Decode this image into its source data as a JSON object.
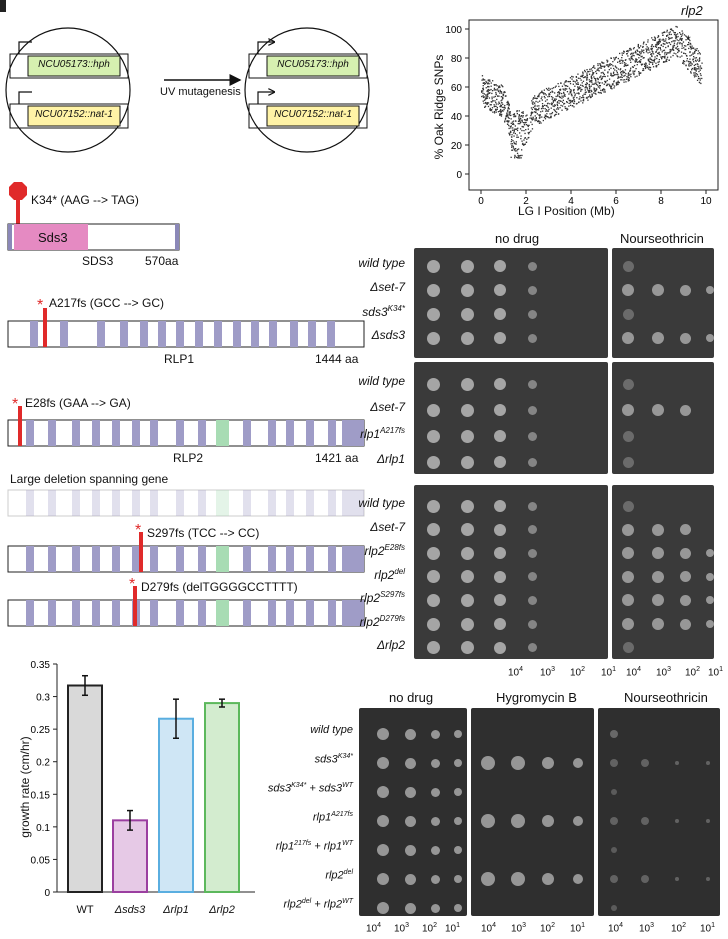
{
  "panelA": {
    "gene1": "NCU05173::hph",
    "gene2": "NCU07152::nat-1",
    "arrow_label": "UV mutagenesis"
  },
  "panelB": {
    "title": "rlp2",
    "ylabel": "% Oak Ridge SNPs",
    "xlabel": "LG I Position (Mb)",
    "y_ticks": [
      "0",
      "20",
      "40",
      "60",
      "80",
      "100"
    ],
    "x_ticks": [
      "0",
      "2",
      "4",
      "6",
      "8",
      "10"
    ],
    "marker": "*"
  },
  "panelC": {
    "sds3_mut": "K34* (AAG --> TAG)",
    "sds3_domain": "Sds3",
    "sds3_name": "SDS3",
    "sds3_len": "570aa",
    "rlp1_mut": "A217fs (GCC --> GC)",
    "rlp1_name": "RLP1",
    "rlp1_len": "1444 aa",
    "rlp2_mut": "E28fs (GAA --> GA)",
    "rlp2_name": "RLP2",
    "rlp2_len": "1421 aa",
    "deletion_label": "Large deletion spanning gene",
    "s297": "S297fs (TCC --> CC)",
    "d279": "D279fs (delTGGGGCCTTTT)",
    "star": "*"
  },
  "spots": {
    "header1": "no drug",
    "header2": "Nourseothricin",
    "group1": [
      {
        "name": "wild type",
        "sup": ""
      },
      {
        "name": "Δset-7",
        "sup": ""
      },
      {
        "name": "sds3",
        "sup": "K34*"
      },
      {
        "name": "Δsds3",
        "sup": ""
      }
    ],
    "group2": [
      {
        "name": "wild type",
        "sup": ""
      },
      {
        "name": "Δset-7",
        "sup": ""
      },
      {
        "name": "rlp1",
        "sup": "A217fs"
      },
      {
        "name": "Δrlp1",
        "sup": ""
      }
    ],
    "group3": [
      {
        "name": "wild type",
        "sup": ""
      },
      {
        "name": "Δset-7",
        "sup": ""
      },
      {
        "name": "rlp2",
        "sup": "E28fs"
      },
      {
        "name": "rlp2",
        "sup": "del"
      },
      {
        "name": "rlp2",
        "sup": "S297fs"
      },
      {
        "name": "rlp2",
        "sup": "D279fs"
      },
      {
        "name": "Δrlp2",
        "sup": ""
      }
    ],
    "dilutions": [
      {
        "base": "10",
        "exp": "4"
      },
      {
        "base": "10",
        "exp": "3"
      },
      {
        "base": "10",
        "exp": "2"
      },
      {
        "base": "10",
        "exp": "1"
      }
    ]
  },
  "complement": {
    "header1": "no drug",
    "header2": "Hygromycin B",
    "header3": "Nourseothricin",
    "rows": [
      {
        "parts": [
          {
            "t": "wild type",
            "s": ""
          }
        ]
      },
      {
        "parts": [
          {
            "t": "sds3",
            "s": "K34*"
          }
        ]
      },
      {
        "parts": [
          {
            "t": "sds3",
            "s": "K34*"
          },
          {
            "t": " + sds3",
            "s": "WT"
          }
        ]
      },
      {
        "parts": [
          {
            "t": "rlp1",
            "s": "A217fs"
          }
        ]
      },
      {
        "parts": [
          {
            "t": "rlp1",
            "s": "217fs"
          },
          {
            "t": " + rlp1",
            "s": "WT"
          }
        ]
      },
      {
        "parts": [
          {
            "t": "rlp2",
            "s": "del"
          }
        ]
      },
      {
        "parts": [
          {
            "t": "rlp2",
            "s": "del"
          },
          {
            "t": " + rlp2",
            "s": "WT"
          }
        ]
      }
    ]
  },
  "chart_data": {
    "type": "bar",
    "categories": [
      "WT",
      "Δsds3",
      "Δrlp1",
      "Δrlp2"
    ],
    "values": [
      0.317,
      0.11,
      0.266,
      0.29
    ],
    "errors": [
      0.015,
      0.015,
      0.03,
      0.006
    ],
    "ylabel": "growth rate (cm/hr)",
    "ylim": [
      0,
      0.35
    ],
    "y_ticks": [
      "0",
      "0.05",
      "0.1",
      "0.15",
      "0.2",
      "0.25",
      "0.3",
      "0.35"
    ],
    "fill_colors": [
      "#d9d9d9",
      "#e6c9e6",
      "#cfe6f5",
      "#d3eccf"
    ],
    "edge_colors": [
      "#222222",
      "#9b3fa0",
      "#5aaee0",
      "#5cb85c"
    ]
  }
}
